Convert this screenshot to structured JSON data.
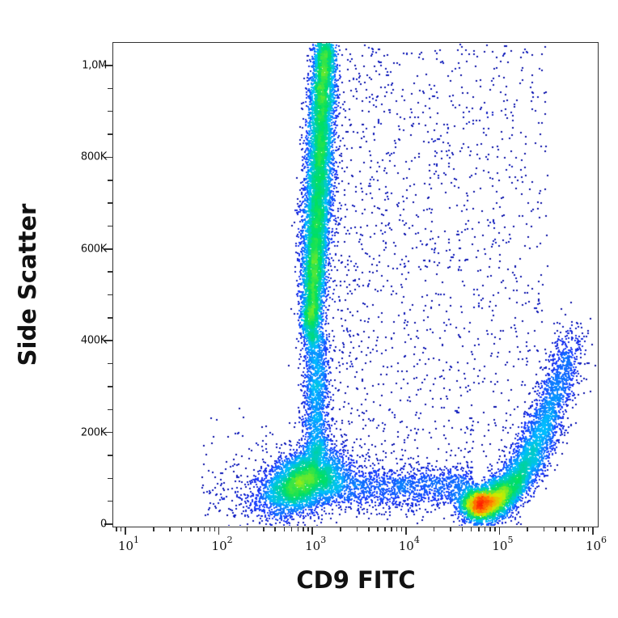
{
  "chart_data": {
    "type": "scatter",
    "subtype": "flow-cytometry-density-dot-plot",
    "title": "",
    "xlabel": "CD9 FITC",
    "ylabel": "Side Scatter",
    "x_scale": "log",
    "y_scale": "linear",
    "xlim": [
      5,
      1000000
    ],
    "ylim": [
      0,
      1050000
    ],
    "x_ticks": [
      {
        "value": 10,
        "base": "10",
        "exp": "1"
      },
      {
        "value": 100,
        "base": "10",
        "exp": "2"
      },
      {
        "value": 1000,
        "base": "10",
        "exp": "3"
      },
      {
        "value": 10000,
        "base": "10",
        "exp": "4"
      },
      {
        "value": 100000,
        "base": "10",
        "exp": "5"
      },
      {
        "value": 1000000,
        "base": "10",
        "exp": "6"
      }
    ],
    "y_ticks": [
      {
        "value": 0,
        "label": "0"
      },
      {
        "value": 200000,
        "label": "200K"
      },
      {
        "value": 400000,
        "label": "400K"
      },
      {
        "value": 600000,
        "label": "600K"
      },
      {
        "value": 800000,
        "label": "800K"
      },
      {
        "value": 1000000,
        "label": "1,0M"
      }
    ],
    "grid": false,
    "legend": null,
    "colormap": [
      "#00008b",
      "#1e3cff",
      "#00bfff",
      "#00e060",
      "#c8f000",
      "#ff9900",
      "#ff2000"
    ],
    "populations": [
      {
        "name": "CD9-negative lymphocyte-like cluster",
        "x_center_log": 2.88,
        "y_center": 95000,
        "x_sd_log": 0.22,
        "y_sd": 38000,
        "n": 4200,
        "peak_color": "#ff8c00"
      },
      {
        "name": "CD9-dim high side-scatter (granulocyte-like) band",
        "x_center_log": 3.05,
        "y_from": 420000,
        "y_to": 1050000,
        "x_sd_log": 0.07,
        "n": 9000,
        "peak_color": "#00e060"
      },
      {
        "name": "connecting stalk",
        "x_center_log": 3.02,
        "y_from": 150000,
        "y_to": 420000,
        "x_sd_log": 0.07,
        "n": 1600,
        "peak_color": "#1e90ff"
      },
      {
        "name": "CD9-bright curved (platelet-like) cluster",
        "x_center_log": 4.95,
        "y_center": 70000,
        "tail_to_log": 5.75,
        "tail_y": 400000,
        "n": 7000,
        "peak_color": "#ff2000"
      },
      {
        "name": "bridge between clusters",
        "x_from_log": 3.1,
        "x_to_log": 4.7,
        "y_center": 85000,
        "y_sd": 25000,
        "n": 1800,
        "peak_color": "#1e3cff"
      },
      {
        "name": "diffuse scatter",
        "x_from_log": 3.1,
        "x_to_log": 5.5,
        "y_from": 150000,
        "y_to": 1050000,
        "n": 1500,
        "peak_color": "#00008b"
      }
    ]
  }
}
